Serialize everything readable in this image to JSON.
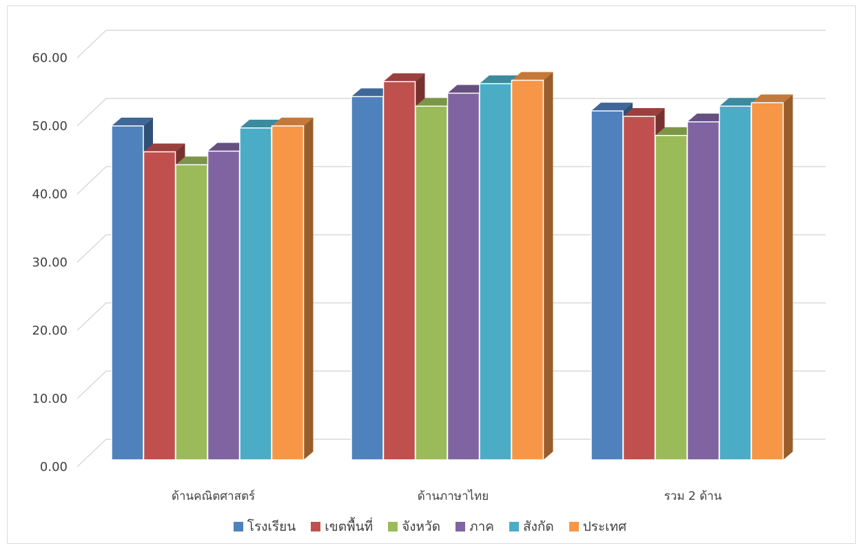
{
  "chart_data": {
    "type": "bar",
    "style": "3d-clustered-column",
    "title": "",
    "xlabel": "",
    "ylabel": "",
    "ylim": [
      0,
      60
    ],
    "y_ticks": [
      "0.00",
      "10.00",
      "20.00",
      "30.00",
      "40.00",
      "50.00",
      "60.00"
    ],
    "grid": true,
    "legend_position": "bottom",
    "categories": [
      "ด้านคณิตศาสตร์",
      "ด้านภาษาไทย",
      "รวม 2 ด้าน"
    ],
    "series": [
      {
        "name": "โรงเรียน",
        "color": "#4f81bd",
        "values": [
          49.0,
          53.3,
          51.2
        ]
      },
      {
        "name": "เขตพื้นที่",
        "color": "#c0504d",
        "values": [
          45.2,
          55.5,
          50.4
        ]
      },
      {
        "name": "จังหวัด",
        "color": "#9bbb59",
        "values": [
          43.3,
          51.9,
          47.6
        ]
      },
      {
        "name": "ภาค",
        "color": "#8064a2",
        "values": [
          45.3,
          53.8,
          49.6
        ]
      },
      {
        "name": "สังกัด",
        "color": "#4bacc6",
        "values": [
          48.7,
          55.2,
          51.9
        ]
      },
      {
        "name": "ประเทศ",
        "color": "#f79646",
        "values": [
          49.0,
          55.7,
          52.4
        ]
      }
    ]
  }
}
